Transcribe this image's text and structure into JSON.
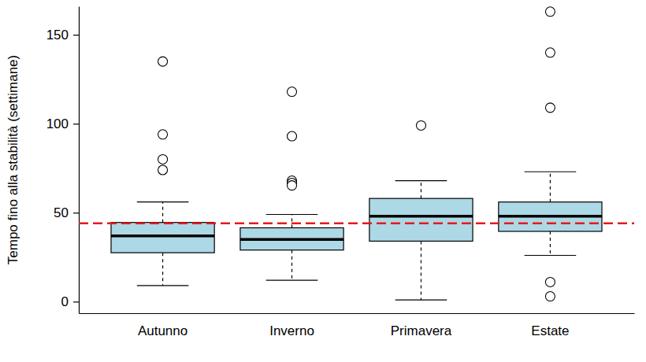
{
  "chart_data": {
    "type": "boxplot",
    "y_label": "Tempo fino alla stabilità (settimane)",
    "categories": [
      "Autunno",
      "Inverno",
      "Primavera",
      "Estate"
    ],
    "color": "#add8e6",
    "ylim": [
      -6.5,
      166
    ],
    "yticks": [
      0,
      50,
      100,
      150
    ],
    "grid": false,
    "boxes": [
      {
        "whisker_low": 9,
        "q1": 27.5,
        "median": 37,
        "q3": 44.5,
        "whisker_high": 56,
        "outliers": [
          135,
          94,
          80,
          74
        ]
      },
      {
        "whisker_low": 12,
        "q1": 29,
        "median": 35,
        "q3": 41.5,
        "whisker_high": 49,
        "outliers": [
          118,
          93,
          68,
          66.7,
          65.3
        ]
      },
      {
        "whisker_low": 1,
        "q1": 34,
        "median": 48,
        "q3": 58,
        "whisker_high": 68,
        "outliers": [
          99
        ]
      },
      {
        "whisker_low": 26,
        "q1": 39.5,
        "median": 48,
        "q3": 56,
        "whisker_high": 73,
        "outliers": [
          163,
          140,
          109,
          11,
          3
        ]
      }
    ],
    "reference_line": {
      "value": 44,
      "color": "#e41a1c",
      "line_style": "dashed"
    }
  }
}
